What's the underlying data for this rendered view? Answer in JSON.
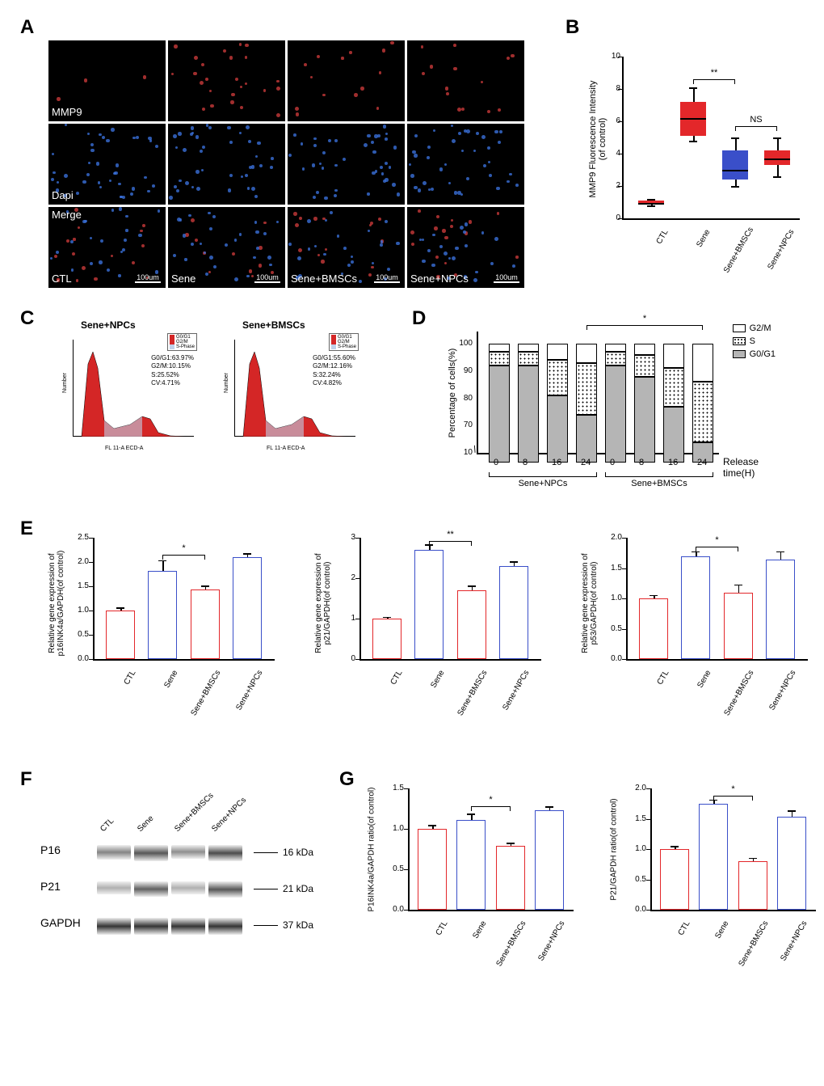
{
  "colors": {
    "red": "#e3272a",
    "blue": "#3a4fc9",
    "black": "#000000",
    "gray": "#b5b5b5",
    "dapi_blue": "#3a6fd8",
    "mmp9_red": "#c83a3a"
  },
  "panelA": {
    "label": "A",
    "row_labels": [
      "MMP9",
      "Dapi",
      "Merge"
    ],
    "col_labels": [
      "CTL",
      "Sene",
      "Sene+BMSCs",
      "Sene+NPCs"
    ],
    "scale_text": "100um"
  },
  "panelB": {
    "label": "B",
    "y_title": "MMP9 Fluorescence Intensity\n(of control)",
    "ylim": [
      0,
      10
    ],
    "yticks": [
      0,
      2,
      4,
      6,
      8,
      10
    ],
    "categories": [
      "CTL",
      "Sene",
      "Sene+BMSCs",
      "Sene+NPCs"
    ],
    "boxes": [
      {
        "min": 0.8,
        "q1": 0.85,
        "median": 0.95,
        "q3": 1.1,
        "max": 1.2,
        "color": "#e3272a"
      },
      {
        "min": 4.8,
        "q1": 5.1,
        "median": 6.2,
        "q3": 7.2,
        "max": 8.1,
        "color": "#e3272a"
      },
      {
        "min": 2.0,
        "q1": 2.4,
        "median": 3.0,
        "q3": 4.2,
        "max": 5.0,
        "color": "#3a4fc9"
      },
      {
        "min": 2.6,
        "q1": 3.3,
        "median": 3.7,
        "q3": 4.2,
        "max": 5.0,
        "color": "#e3272a"
      }
    ],
    "sig": [
      {
        "from": 1,
        "to": 2,
        "text": "**",
        "y": 8.6
      },
      {
        "from": 2,
        "to": 3,
        "text": "NS",
        "y": 5.7
      }
    ]
  },
  "panelC": {
    "label": "C",
    "plots": [
      {
        "title": "Sene+NPCs",
        "stats": [
          "G0/G1:63.97%",
          "G2/M:10.15%",
          "S:25.52%",
          "CV:4.71%"
        ]
      },
      {
        "title": "Sene+BMSCs",
        "stats": [
          "G0/G1:55.60%",
          "G2/M:12.16%",
          "S:32.24%",
          "CV:4.82%"
        ]
      }
    ],
    "legend_items": [
      "G0/G1",
      "G2/M",
      "S-Phase"
    ],
    "x_axis": "FL 11-A ECD-A",
    "y_axis": "Number"
  },
  "panelD": {
    "label": "D",
    "y_title": "Percentage of cells(%)",
    "ylim": [
      10,
      100
    ],
    "yticks": [
      10,
      70,
      80,
      90,
      100
    ],
    "x_title": "Release time(H)",
    "categories": [
      "0",
      "8",
      "16",
      "24",
      "0",
      "8",
      "16",
      "24"
    ],
    "group_labels": [
      "Sene+NPCs",
      "Sene+BMSCs"
    ],
    "legend": [
      "G2/M",
      "S",
      "G0/G1"
    ],
    "bars": [
      {
        "g01": 92,
        "s": 5,
        "g2m": 3
      },
      {
        "g01": 92,
        "s": 5,
        "g2m": 3
      },
      {
        "g01": 81,
        "s": 13,
        "g2m": 6
      },
      {
        "g01": 74,
        "s": 19,
        "g2m": 7
      },
      {
        "g01": 92,
        "s": 5,
        "g2m": 3
      },
      {
        "g01": 88,
        "s": 8,
        "g2m": 4
      },
      {
        "g01": 77,
        "s": 14,
        "g2m": 9
      },
      {
        "g01": 64,
        "s": 22,
        "g2m": 14
      }
    ],
    "sig": {
      "from": 3,
      "to": 7,
      "text": "*",
      "y": 103
    }
  },
  "panelE": {
    "label": "E",
    "charts": [
      {
        "y_title": "Relative gene expression of\np16INK4a/GAPDH(of control)",
        "ylim": [
          0,
          2.5
        ],
        "ytick_step": 0.5,
        "categories": [
          "CTL",
          "Sene",
          "Sene+BMSCs",
          "Sene+NPCs"
        ],
        "values": [
          1.0,
          1.82,
          1.44,
          2.1
        ],
        "errors": [
          0.06,
          0.22,
          0.07,
          0.08
        ],
        "colors": [
          "#e3272a",
          "#3a4fc9",
          "#e3272a",
          "#3a4fc9"
        ],
        "sig": {
          "from": 1,
          "to": 2,
          "text": "*",
          "y": 2.15
        }
      },
      {
        "y_title": "Relative gene expression of\np21/GAPDH(of control)",
        "ylim": [
          0,
          3
        ],
        "ytick_step": 1,
        "categories": [
          "CTL",
          "Sene",
          "Sene+BMSCs",
          "Sene+NPCs"
        ],
        "values": [
          1.0,
          2.7,
          1.7,
          2.3
        ],
        "errors": [
          0.05,
          0.14,
          0.12,
          0.12
        ],
        "colors": [
          "#e3272a",
          "#3a4fc9",
          "#e3272a",
          "#3a4fc9"
        ],
        "sig": {
          "from": 1,
          "to": 2,
          "text": "**",
          "y": 2.92
        }
      },
      {
        "y_title": "Relative gene expression of\np53/GAPDH(of control)",
        "ylim": [
          0,
          2.0
        ],
        "ytick_step": 0.5,
        "categories": [
          "CTL",
          "Sene",
          "Sene+BMSCs",
          "Sene+NPCs"
        ],
        "values": [
          1.0,
          1.7,
          1.1,
          1.64
        ],
        "errors": [
          0.06,
          0.08,
          0.13,
          0.14
        ],
        "colors": [
          "#e3272a",
          "#3a4fc9",
          "#e3272a",
          "#3a4fc9"
        ],
        "sig": {
          "from": 1,
          "to": 2,
          "text": "*",
          "y": 1.86
        }
      }
    ]
  },
  "panelF": {
    "label": "F",
    "lanes": [
      "CTL",
      "Sene",
      "Sene+BMSCs",
      "Sene+NPCs"
    ],
    "proteins": [
      {
        "name": "P16",
        "kda": "16 kDa",
        "intensities": [
          0.55,
          0.75,
          0.5,
          0.8
        ]
      },
      {
        "name": "P21",
        "kda": "21 kDa",
        "intensities": [
          0.35,
          0.7,
          0.35,
          0.75
        ]
      },
      {
        "name": "GAPDH",
        "kda": "37 kDa",
        "intensities": [
          0.9,
          0.9,
          0.9,
          0.9
        ]
      }
    ]
  },
  "panelG": {
    "label": "G",
    "charts": [
      {
        "y_title": "P16INK4a/GAPDH ratio(of control)",
        "ylim": [
          0,
          1.5
        ],
        "ytick_step": 0.5,
        "categories": [
          "CTL",
          "Sene",
          "Sene+BMSCs",
          "Sene+NPCs"
        ],
        "values": [
          1.0,
          1.11,
          0.79,
          1.23
        ],
        "errors": [
          0.05,
          0.08,
          0.04,
          0.05
        ],
        "colors": [
          "#e3272a",
          "#3a4fc9",
          "#e3272a",
          "#3a4fc9"
        ],
        "sig": {
          "from": 1,
          "to": 2,
          "text": "*",
          "y": 1.28
        }
      },
      {
        "y_title": "P21/GAPDH ratio(of control)",
        "ylim": [
          0,
          2.0
        ],
        "ytick_step": 0.5,
        "categories": [
          "CTL",
          "Sene",
          "Sene+BMSCs",
          "Sene+NPCs"
        ],
        "values": [
          1.0,
          1.75,
          0.8,
          1.53
        ],
        "errors": [
          0.05,
          0.07,
          0.06,
          0.11
        ],
        "colors": [
          "#e3272a",
          "#3a4fc9",
          "#e3272a",
          "#3a4fc9"
        ],
        "sig": {
          "from": 1,
          "to": 2,
          "text": "*",
          "y": 1.88
        }
      }
    ]
  }
}
